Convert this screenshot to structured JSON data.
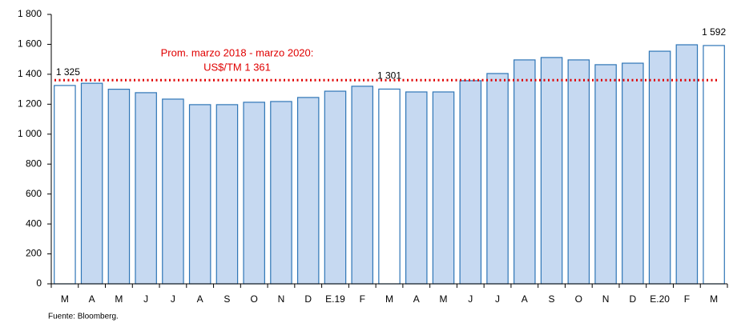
{
  "chart_data": {
    "type": "bar",
    "categories": [
      "M",
      "A",
      "M",
      "J",
      "J",
      "A",
      "S",
      "O",
      "N",
      "D",
      "E.19",
      "F",
      "M",
      "A",
      "M",
      "J",
      "J",
      "A",
      "S",
      "O",
      "N",
      "D",
      "E.20",
      "F",
      "M"
    ],
    "values": [
      1325,
      1340,
      1300,
      1277,
      1234,
      1197,
      1197,
      1213,
      1218,
      1245,
      1287,
      1320,
      1301,
      1282,
      1282,
      1357,
      1405,
      1496,
      1512,
      1496,
      1464,
      1474,
      1554,
      1597,
      1592
    ],
    "value_labels": [
      "1 325",
      null,
      null,
      null,
      null,
      null,
      null,
      null,
      null,
      null,
      null,
      null,
      "1 301",
      null,
      null,
      null,
      null,
      null,
      null,
      null,
      null,
      null,
      null,
      null,
      "1 592"
    ],
    "colors": [
      "#ffffff",
      "#c6d9f1",
      "#c6d9f1",
      "#c6d9f1",
      "#c6d9f1",
      "#c6d9f1",
      "#c6d9f1",
      "#c6d9f1",
      "#c6d9f1",
      "#c6d9f1",
      "#c6d9f1",
      "#c6d9f1",
      "#ffffff",
      "#c6d9f1",
      "#c6d9f1",
      "#c6d9f1",
      "#c6d9f1",
      "#c6d9f1",
      "#c6d9f1",
      "#c6d9f1",
      "#c6d9f1",
      "#c6d9f1",
      "#c6d9f1",
      "#c6d9f1",
      "#ffffff"
    ],
    "edge_color": "#2e75b6",
    "ylim": [
      0,
      1800
    ],
    "yticks": [
      0,
      200,
      400,
      600,
      800,
      {
        "value": 1000,
        "label": "1 000"
      },
      {
        "value": 1200,
        "label": "1 200"
      },
      {
        "value": 1400,
        "label": "1 400"
      },
      {
        "value": 1600,
        "label": "1 600"
      },
      {
        "value": 1800,
        "label": "1 800"
      }
    ],
    "reference_line": {
      "value": 1361,
      "color": "#e00000",
      "annotation": [
        "Prom. marzo 2018 - marzo 2020:",
        "US$/TM 1 361"
      ]
    },
    "source": "Fuente: Bloomberg."
  }
}
